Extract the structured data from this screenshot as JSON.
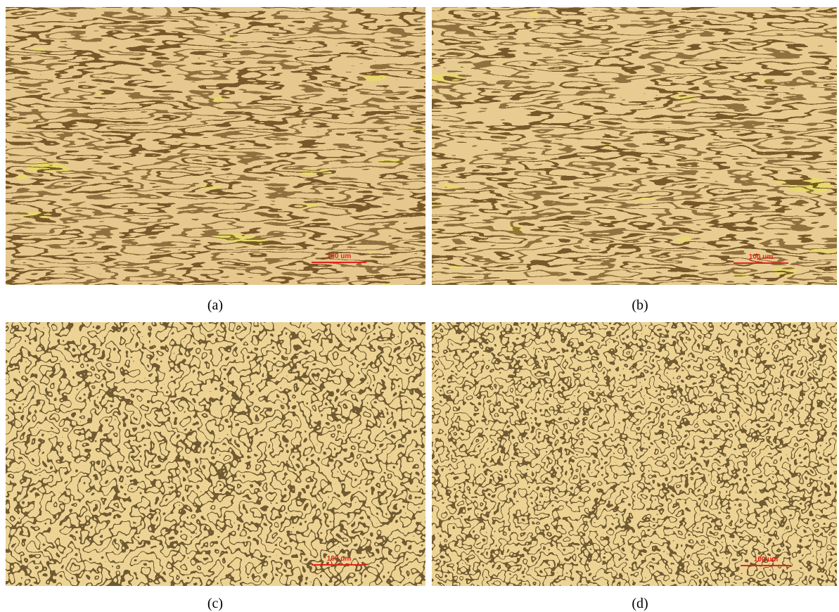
{
  "panels": [
    {
      "label": "(a)",
      "scale_bar": "100 um"
    },
    {
      "label": "(b)",
      "scale_bar": "100 um"
    },
    {
      "label": "(c)",
      "scale_bar": "100 um"
    },
    {
      "label": "(d)",
      "scale_bar": "100 um"
    }
  ]
}
